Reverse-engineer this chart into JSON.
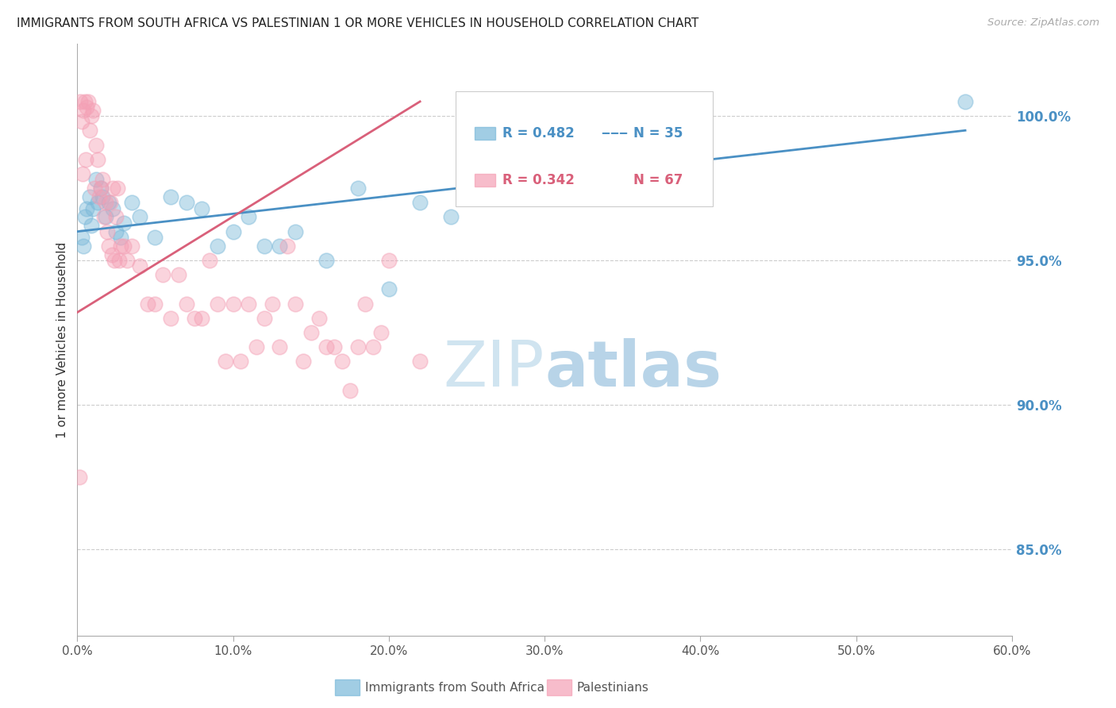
{
  "title": "IMMIGRANTS FROM SOUTH AFRICA VS PALESTINIAN 1 OR MORE VEHICLES IN HOUSEHOLD CORRELATION CHART",
  "source": "Source: ZipAtlas.com",
  "ylabel": "1 or more Vehicles in Household",
  "legend_label_blue": "Immigrants from South Africa",
  "legend_label_pink": "Palestinians",
  "R_blue": 0.482,
  "N_blue": 35,
  "R_pink": 0.342,
  "N_pink": 67,
  "xlim": [
    0.0,
    60.0
  ],
  "ylim": [
    82.0,
    102.5
  ],
  "x_ticks": [
    0.0,
    10.0,
    20.0,
    30.0,
    40.0,
    50.0,
    60.0
  ],
  "y_ticks_right": [
    85.0,
    90.0,
    95.0,
    100.0
  ],
  "color_blue": "#7ab8d9",
  "color_pink": "#f4a0b5",
  "line_color_blue": "#4a90c4",
  "line_color_pink": "#d9607a",
  "background": "#ffffff",
  "blue_x": [
    0.3,
    0.5,
    0.8,
    1.0,
    1.2,
    1.5,
    1.8,
    2.0,
    2.3,
    2.5,
    3.0,
    3.5,
    4.0,
    5.0,
    6.0,
    7.0,
    8.0,
    9.0,
    10.0,
    11.0,
    12.0,
    13.0,
    14.0,
    16.0,
    18.0,
    20.0,
    22.0,
    24.0,
    0.4,
    0.6,
    0.9,
    1.3,
    1.6,
    2.8,
    57.0
  ],
  "blue_y": [
    95.8,
    96.5,
    97.2,
    96.8,
    97.8,
    97.5,
    96.5,
    97.0,
    96.8,
    96.0,
    96.3,
    97.0,
    96.5,
    95.8,
    97.2,
    97.0,
    96.8,
    95.5,
    96.0,
    96.5,
    95.5,
    95.5,
    96.0,
    95.0,
    97.5,
    94.0,
    97.0,
    96.5,
    95.5,
    96.8,
    96.2,
    97.0,
    97.2,
    95.8,
    100.5
  ],
  "pink_x": [
    0.2,
    0.3,
    0.4,
    0.5,
    0.6,
    0.7,
    0.8,
    0.9,
    1.0,
    1.1,
    1.2,
    1.3,
    1.4,
    1.5,
    1.6,
    1.7,
    1.8,
    1.9,
    2.0,
    2.1,
    2.2,
    2.3,
    2.4,
    2.5,
    2.6,
    2.7,
    2.8,
    3.0,
    3.2,
    3.5,
    4.0,
    4.5,
    5.0,
    5.5,
    6.0,
    6.5,
    7.0,
    7.5,
    8.0,
    8.5,
    9.0,
    9.5,
    10.0,
    10.5,
    11.0,
    11.5,
    12.0,
    12.5,
    13.0,
    13.5,
    14.0,
    14.5,
    15.0,
    15.5,
    16.0,
    16.5,
    17.0,
    17.5,
    18.0,
    18.5,
    19.0,
    19.5,
    20.0,
    22.0,
    0.35,
    0.55,
    0.15
  ],
  "pink_y": [
    100.5,
    99.8,
    100.2,
    100.5,
    100.3,
    100.5,
    99.5,
    100.0,
    100.2,
    97.5,
    99.0,
    98.5,
    97.2,
    97.5,
    97.8,
    96.5,
    97.0,
    96.0,
    95.5,
    97.0,
    95.2,
    97.5,
    95.0,
    96.5,
    97.5,
    95.0,
    95.5,
    95.5,
    95.0,
    95.5,
    94.8,
    93.5,
    93.5,
    94.5,
    93.0,
    94.5,
    93.5,
    93.0,
    93.0,
    95.0,
    93.5,
    91.5,
    93.5,
    91.5,
    93.5,
    92.0,
    93.0,
    93.5,
    92.0,
    95.5,
    93.5,
    91.5,
    92.5,
    93.0,
    92.0,
    92.0,
    91.5,
    90.5,
    92.0,
    93.5,
    92.0,
    92.5,
    95.0,
    91.5,
    98.0,
    98.5,
    87.5
  ],
  "zipatlas_text": "ZIPatlas",
  "zipatlas_color": "#d0e4f0"
}
